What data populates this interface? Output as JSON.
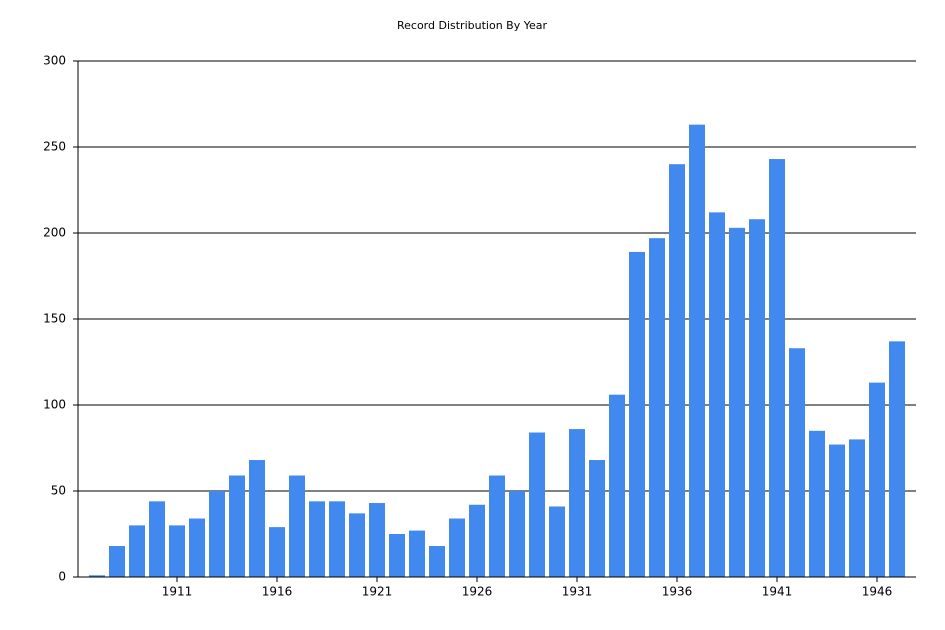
{
  "chart_data": {
    "type": "bar",
    "title": "Record Distribution By Year",
    "categories": [
      null,
      null,
      null,
      null,
      "1911",
      null,
      null,
      null,
      null,
      "1916",
      null,
      null,
      null,
      null,
      "1921",
      null,
      null,
      null,
      null,
      "1926",
      null,
      null,
      null,
      null,
      "1931",
      null,
      null,
      null,
      null,
      "1936",
      null,
      null,
      null,
      null,
      "1941",
      null,
      null,
      null,
      null,
      "1946",
      null
    ],
    "values": [
      1,
      18,
      30,
      44,
      30,
      34,
      50,
      59,
      68,
      29,
      59,
      44,
      44,
      37,
      43,
      25,
      27,
      18,
      34,
      42,
      59,
      50,
      84,
      41,
      86,
      68,
      106,
      189,
      197,
      240,
      263,
      212,
      203,
      208,
      243,
      133,
      85,
      77,
      80,
      113,
      137
    ],
    "color": "#4189ee",
    "ylim": [
      0,
      300
    ],
    "yticks": [
      0,
      50,
      100,
      150,
      200,
      250,
      300
    ],
    "grid": true
  }
}
